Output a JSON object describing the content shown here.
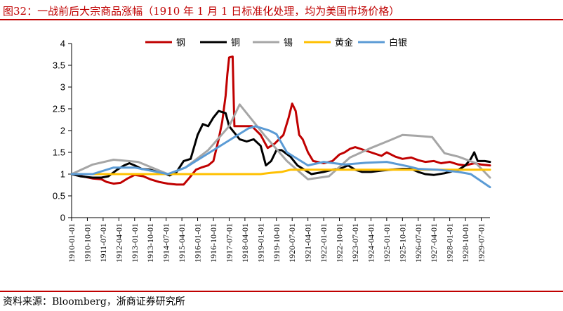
{
  "header": {
    "title": "图32：一战前后大宗商品涨幅（1910 年 1 月 1 日标准化处理，均为美国市场价格）"
  },
  "footer": {
    "source": "资料来源：Bloomberg，浙商证券研究所"
  },
  "chart_data": {
    "type": "line",
    "ylim": [
      0,
      4
    ],
    "yticks": [
      "0",
      "0.5",
      "1",
      "1.5",
      "2",
      "2.5",
      "3",
      "3.5",
      "4"
    ],
    "xlim": [
      "1910-01",
      "1929-12"
    ],
    "xticks": [
      "1910-01-01",
      "1910-10-01",
      "1911-07-01",
      "1912-04-01",
      "1913-01-01",
      "1913-10-01",
      "1914-07-01",
      "1915-04-01",
      "1916-01-01",
      "1916-10-01",
      "1917-07-01",
      "1918-04-01",
      "1919-01-01",
      "1919-10-01",
      "1920-07-01",
      "1921-04-01",
      "1922-01-01",
      "1922-10-01",
      "1923-07-01",
      "1924-04-01",
      "1925-01-01",
      "1925-10-01",
      "1926-07-01",
      "1927-04-01",
      "1928-01-01",
      "1928-10-01",
      "1929-07-01"
    ],
    "legend": {
      "position": "top"
    },
    "series": [
      {
        "name": "钢",
        "color": "#c00000",
        "points": [
          [
            "1910-01",
            1.0
          ],
          [
            "1910-07",
            0.95
          ],
          [
            "1911-01",
            0.9
          ],
          [
            "1911-06",
            0.88
          ],
          [
            "1911-09",
            0.82
          ],
          [
            "1912-01",
            0.78
          ],
          [
            "1912-05",
            0.8
          ],
          [
            "1912-09",
            0.9
          ],
          [
            "1913-01",
            0.98
          ],
          [
            "1913-06",
            0.95
          ],
          [
            "1913-10",
            0.88
          ],
          [
            "1914-03",
            0.82
          ],
          [
            "1914-08",
            0.78
          ],
          [
            "1915-01",
            0.76
          ],
          [
            "1915-05",
            0.76
          ],
          [
            "1915-08",
            0.9
          ],
          [
            "1915-12",
            1.1
          ],
          [
            "1916-03",
            1.15
          ],
          [
            "1916-07",
            1.2
          ],
          [
            "1916-10",
            1.3
          ],
          [
            "1917-01",
            1.8
          ],
          [
            "1917-03",
            2.2
          ],
          [
            "1917-05",
            2.8
          ],
          [
            "1917-06",
            3.3
          ],
          [
            "1917-07",
            3.68
          ],
          [
            "1917-09",
            3.7
          ],
          [
            "1917-10",
            2.1
          ],
          [
            "1918-04",
            2.1
          ],
          [
            "1918-08",
            2.1
          ],
          [
            "1919-01",
            1.9
          ],
          [
            "1919-05",
            1.6
          ],
          [
            "1919-09",
            1.7
          ],
          [
            "1920-02",
            1.9
          ],
          [
            "1920-05",
            2.3
          ],
          [
            "1920-07",
            2.62
          ],
          [
            "1920-09",
            2.45
          ],
          [
            "1920-11",
            1.9
          ],
          [
            "1921-01",
            1.8
          ],
          [
            "1921-04",
            1.5
          ],
          [
            "1921-07",
            1.3
          ],
          [
            "1922-01",
            1.25
          ],
          [
            "1922-06",
            1.3
          ],
          [
            "1922-10",
            1.45
          ],
          [
            "1923-01",
            1.5
          ],
          [
            "1923-04",
            1.58
          ],
          [
            "1923-07",
            1.62
          ],
          [
            "1923-10",
            1.58
          ],
          [
            "1924-04",
            1.5
          ],
          [
            "1924-10",
            1.42
          ],
          [
            "1925-01",
            1.5
          ],
          [
            "1925-06",
            1.4
          ],
          [
            "1925-10",
            1.35
          ],
          [
            "1926-03",
            1.38
          ],
          [
            "1926-07",
            1.32
          ],
          [
            "1926-11",
            1.28
          ],
          [
            "1927-04",
            1.3
          ],
          [
            "1927-08",
            1.25
          ],
          [
            "1928-01",
            1.28
          ],
          [
            "1928-06",
            1.22
          ],
          [
            "1928-10",
            1.2
          ],
          [
            "1929-03",
            1.25
          ],
          [
            "1929-07",
            1.22
          ],
          [
            "1929-12",
            1.2
          ]
        ]
      },
      {
        "name": "铜",
        "color": "#000000",
        "points": [
          [
            "1910-01",
            1.0
          ],
          [
            "1910-06",
            0.95
          ],
          [
            "1911-01",
            0.92
          ],
          [
            "1911-06",
            0.92
          ],
          [
            "1911-10",
            0.95
          ],
          [
            "1912-03",
            1.1
          ],
          [
            "1912-07",
            1.2
          ],
          [
            "1912-10",
            1.25
          ],
          [
            "1913-01",
            1.2
          ],
          [
            "1913-05",
            1.12
          ],
          [
            "1913-10",
            1.1
          ],
          [
            "1914-02",
            1.05
          ],
          [
            "1914-07",
            1.0
          ],
          [
            "1914-09",
            0.97
          ],
          [
            "1915-01",
            1.05
          ],
          [
            "1915-05",
            1.3
          ],
          [
            "1915-09",
            1.35
          ],
          [
            "1916-01",
            1.9
          ],
          [
            "1916-04",
            2.15
          ],
          [
            "1916-07",
            2.1
          ],
          [
            "1916-10",
            2.3
          ],
          [
            "1917-01",
            2.45
          ],
          [
            "1917-05",
            2.4
          ],
          [
            "1917-07",
            2.1
          ],
          [
            "1917-10",
            1.95
          ],
          [
            "1918-01",
            1.8
          ],
          [
            "1918-05",
            1.75
          ],
          [
            "1918-09",
            1.8
          ],
          [
            "1919-01",
            1.65
          ],
          [
            "1919-04",
            1.2
          ],
          [
            "1919-07",
            1.3
          ],
          [
            "1919-10",
            1.55
          ],
          [
            "1920-01",
            1.55
          ],
          [
            "1920-06",
            1.4
          ],
          [
            "1920-10",
            1.2
          ],
          [
            "1921-02",
            1.1
          ],
          [
            "1921-06",
            1.0
          ],
          [
            "1922-01",
            1.05
          ],
          [
            "1922-06",
            1.1
          ],
          [
            "1922-10",
            1.12
          ],
          [
            "1923-03",
            1.2
          ],
          [
            "1923-07",
            1.1
          ],
          [
            "1923-11",
            1.05
          ],
          [
            "1924-04",
            1.05
          ],
          [
            "1924-10",
            1.08
          ],
          [
            "1925-03",
            1.1
          ],
          [
            "1925-10",
            1.12
          ],
          [
            "1926-03",
            1.12
          ],
          [
            "1926-07",
            1.05
          ],
          [
            "1926-11",
            1.0
          ],
          [
            "1927-04",
            0.98
          ],
          [
            "1927-10",
            1.02
          ],
          [
            "1928-01",
            1.05
          ],
          [
            "1928-06",
            1.1
          ],
          [
            "1928-10",
            1.2
          ],
          [
            "1929-01",
            1.35
          ],
          [
            "1929-03",
            1.5
          ],
          [
            "1929-05",
            1.3
          ],
          [
            "1929-09",
            1.3
          ],
          [
            "1929-12",
            1.28
          ]
        ]
      },
      {
        "name": "锡",
        "color": "#a6a6a6",
        "points": [
          [
            "1910-01",
            1.0
          ],
          [
            "1911-01",
            1.22
          ],
          [
            "1912-01",
            1.33
          ],
          [
            "1913-03",
            1.28
          ],
          [
            "1914-08",
            1.0
          ],
          [
            "1915-06",
            1.15
          ],
          [
            "1916-07",
            1.55
          ],
          [
            "1917-07",
            2.1
          ],
          [
            "1918-01",
            2.6
          ],
          [
            "1919-03",
            1.9
          ],
          [
            "1920-04",
            1.3
          ],
          [
            "1921-04",
            0.88
          ],
          [
            "1922-04",
            0.95
          ],
          [
            "1923-04",
            1.38
          ],
          [
            "1924-04",
            1.6
          ],
          [
            "1925-03",
            1.78
          ],
          [
            "1925-10",
            1.9
          ],
          [
            "1926-06",
            1.88
          ],
          [
            "1927-03",
            1.85
          ],
          [
            "1927-10",
            1.48
          ],
          [
            "1928-06",
            1.4
          ],
          [
            "1929-04",
            1.25
          ],
          [
            "1929-12",
            0.92
          ]
        ]
      },
      {
        "name": "黄金",
        "color": "#ffc000",
        "points": [
          [
            "1910-01",
            1.0
          ],
          [
            "1919-01",
            1.0
          ],
          [
            "1919-07",
            1.03
          ],
          [
            "1920-01",
            1.05
          ],
          [
            "1920-06",
            1.1
          ],
          [
            "1922-01",
            1.1
          ],
          [
            "1929-12",
            1.1
          ]
        ]
      },
      {
        "name": "白银",
        "color": "#5b9bd5",
        "points": [
          [
            "1910-01",
            1.0
          ],
          [
            "1911-01",
            1.0
          ],
          [
            "1912-01",
            1.15
          ],
          [
            "1913-01",
            1.15
          ],
          [
            "1913-10",
            1.08
          ],
          [
            "1914-08",
            1.0
          ],
          [
            "1915-06",
            1.15
          ],
          [
            "1916-06",
            1.45
          ],
          [
            "1917-06",
            1.75
          ],
          [
            "1918-06",
            2.05
          ],
          [
            "1918-10",
            2.1
          ],
          [
            "1919-06",
            2.0
          ],
          [
            "1919-10",
            1.92
          ],
          [
            "1920-04",
            1.5
          ],
          [
            "1921-04",
            1.2
          ],
          [
            "1922-01",
            1.28
          ],
          [
            "1923-01",
            1.22
          ],
          [
            "1924-01",
            1.26
          ],
          [
            "1925-01",
            1.28
          ],
          [
            "1926-01",
            1.18
          ],
          [
            "1926-07",
            1.12
          ],
          [
            "1927-06",
            1.1
          ],
          [
            "1928-06",
            1.05
          ],
          [
            "1929-01",
            1.0
          ],
          [
            "1929-12",
            0.7
          ]
        ]
      }
    ]
  }
}
